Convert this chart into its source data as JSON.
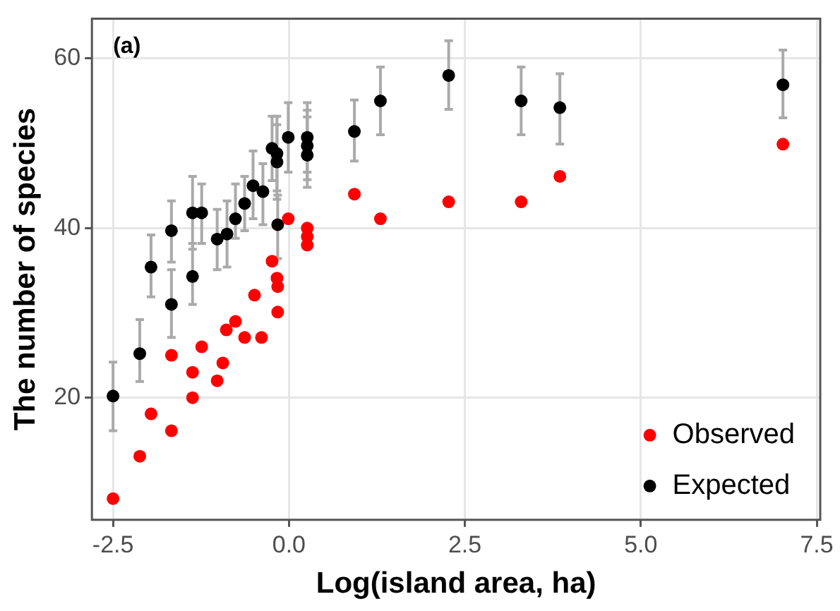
{
  "chart_data": {
    "type": "scatter",
    "xlabel": "Log(island area, ha)",
    "ylabel": "The number of species",
    "annotations": [
      "(a)"
    ],
    "xlim": [
      -2.8,
      7.55
    ],
    "xticks": [
      {
        "value": -2.5,
        "label": "-2.5"
      },
      {
        "value": 0,
        "label": "0.0"
      },
      {
        "value": 2.5,
        "label": "2.5"
      },
      {
        "value": 5,
        "label": "5.0"
      },
      {
        "value": 7.5,
        "label": "7.5"
      }
    ],
    "ylim": [
      5.6,
      64.7
    ],
    "yticks": [
      20,
      40,
      60
    ],
    "grid": true,
    "legend": "bottom right",
    "marker": "circle",
    "series": [
      {
        "name": "Observed",
        "color": "#ff0000",
        "x": [
          -2.5,
          -2.12,
          -1.96,
          -1.67,
          -1.67,
          -1.37,
          -1.37,
          -1.24,
          -1.02,
          -0.94,
          -0.89,
          -0.76,
          -0.63,
          -0.49,
          -0.39,
          -0.24,
          -0.17,
          -0.16,
          -0.16,
          -0.01,
          0.26,
          0.26,
          0.26,
          0.93,
          1.3,
          2.27,
          3.3,
          3.85,
          7.02
        ],
        "values": [
          8.1,
          13.1,
          18.1,
          16.1,
          25,
          20,
          23,
          26,
          22,
          24.1,
          28,
          29,
          27.1,
          32.1,
          27.1,
          36.1,
          34.1,
          33.1,
          30.1,
          41.1,
          40,
          39,
          38,
          44,
          41.1,
          43.1,
          43.1,
          46.1,
          49.9
        ]
      },
      {
        "name": "Expected",
        "color": "#000000",
        "x": [
          -2.5,
          -2.12,
          -1.96,
          -1.67,
          -1.67,
          -1.37,
          -1.37,
          -1.24,
          -1.02,
          -0.88,
          -0.76,
          -0.63,
          -0.51,
          -0.37,
          -0.24,
          -0.17,
          -0.17,
          -0.16,
          -0.01,
          0.26,
          0.26,
          0.26,
          0.93,
          1.3,
          2.27,
          3.3,
          3.85,
          7.02
        ],
        "values": [
          20.2,
          25.2,
          35.4,
          31,
          39.7,
          34.3,
          41.8,
          41.8,
          38.7,
          39.3,
          41.1,
          42.9,
          45,
          44.3,
          49.4,
          48.8,
          47.8,
          40.4,
          50.7,
          50.7,
          49.7,
          48.6,
          51.4,
          55,
          58,
          55,
          54.2,
          56.9
        ],
        "errors": [
          [
            16.1,
            24.2
          ],
          [
            21.9,
            29.2
          ],
          [
            31.9,
            39.2
          ],
          [
            27.1,
            35.1
          ],
          [
            36,
            43.2
          ],
          [
            31,
            38.2
          ],
          [
            37.5,
            46.1
          ],
          [
            38.2,
            45.2
          ],
          [
            35.1,
            42.2
          ],
          [
            35.4,
            43.2
          ],
          [
            38.8,
            45.2
          ],
          [
            39.7,
            46.1
          ],
          [
            41.1,
            49.1
          ],
          [
            40.4,
            47.6
          ],
          [
            45.6,
            53.2
          ],
          [
            44.4,
            53.2
          ],
          [
            43.4,
            52.2
          ],
          [
            36.4,
            43.9
          ],
          [
            46.6,
            54.8
          ],
          [
            46.6,
            54.8
          ],
          [
            45.7,
            53.9
          ],
          [
            44.8,
            53.1
          ],
          [
            47.9,
            55.1
          ],
          [
            51,
            59
          ],
          [
            54,
            62.1
          ],
          [
            51,
            59
          ],
          [
            49.9,
            58.2
          ],
          [
            53,
            61
          ]
        ]
      }
    ]
  }
}
